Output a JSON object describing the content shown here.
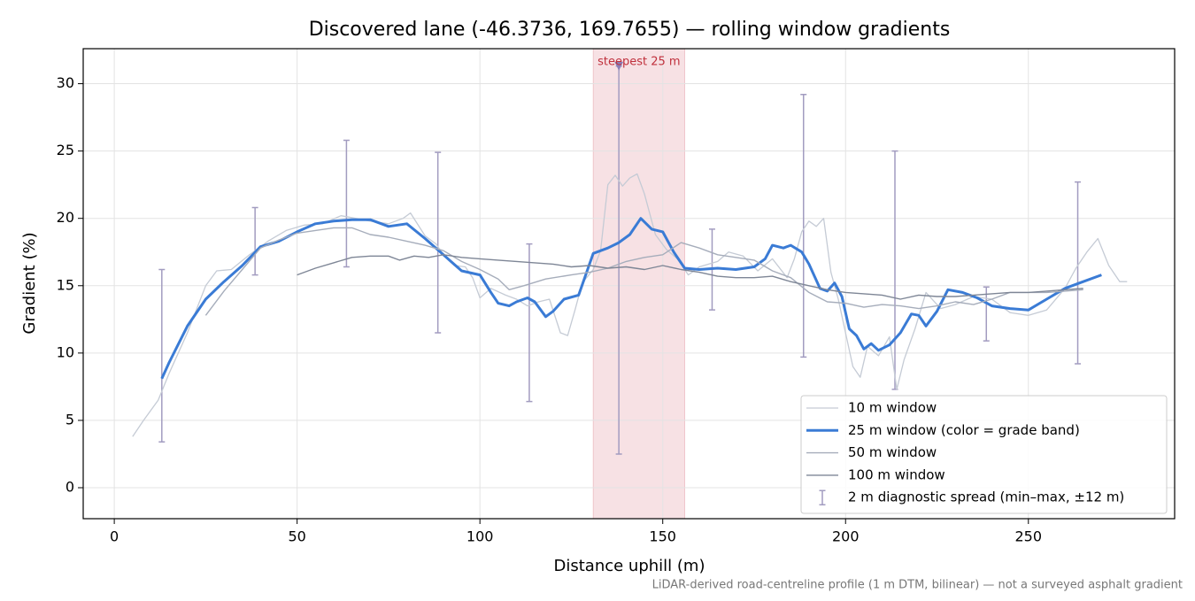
{
  "chart_data": {
    "type": "line",
    "title": "Discovered lane (-46.3736, 169.7655) — rolling window gradients",
    "x_label": "Distance uphill (m)",
    "y_label": "Gradient (%)",
    "footnote": "LiDAR-derived road-centreline profile (1 m DTM, bilinear) — not a surveyed asphalt gradient",
    "xlim": [
      -8.5,
      290
    ],
    "ylim": [
      -2.3,
      32.6
    ],
    "xticks": [
      0,
      50,
      100,
      150,
      200,
      250
    ],
    "yticks": [
      0,
      5,
      10,
      15,
      20,
      25,
      30
    ],
    "grid": true,
    "legend": "lower right",
    "series": [
      {
        "name": "10 m window",
        "color": "#c5cbd5",
        "width": 1.3,
        "x": [
          5,
          8,
          12,
          15,
          20,
          25,
          28,
          32,
          37,
          42,
          47,
          52,
          57,
          62,
          66,
          70,
          75,
          79,
          81,
          85,
          88,
          90,
          93,
          96,
          98,
          100,
          103,
          107,
          110,
          113,
          116,
          119,
          122,
          124,
          126,
          128,
          131,
          133,
          135,
          137,
          139,
          141,
          143,
          145,
          148,
          151,
          154,
          157,
          160,
          165,
          168,
          172,
          176,
          180,
          184,
          186,
          188,
          190,
          192,
          194,
          196,
          198,
          200,
          202,
          204,
          206,
          209,
          212,
          214,
          216,
          219,
          222,
          226,
          230,
          235,
          240,
          245,
          250,
          255,
          260,
          263,
          266,
          269,
          272,
          275,
          277
        ],
        "values": [
          3.8,
          5.0,
          6.5,
          8.5,
          11.5,
          15.0,
          16.1,
          16.2,
          17.3,
          18.3,
          19.1,
          19.5,
          19.6,
          20.2,
          20.0,
          19.8,
          19.6,
          20.0,
          20.4,
          18.7,
          18.1,
          17.3,
          16.5,
          16.4,
          15.6,
          14.1,
          14.8,
          14.3,
          14.0,
          13.5,
          13.8,
          14.0,
          11.5,
          11.3,
          13.2,
          15.2,
          16.2,
          17.6,
          22.5,
          23.2,
          22.4,
          23.0,
          23.3,
          21.8,
          18.8,
          17.7,
          17.0,
          15.8,
          16.4,
          16.8,
          17.5,
          17.2,
          16.1,
          17.0,
          15.6,
          17.0,
          19.0,
          19.8,
          19.4,
          20.0,
          16.0,
          14.0,
          11.5,
          9.0,
          8.2,
          10.5,
          9.8,
          11.2,
          7.3,
          9.5,
          11.8,
          14.5,
          13.3,
          13.6,
          14.2,
          14.0,
          13.0,
          12.8,
          13.2,
          14.8,
          16.3,
          17.5,
          18.5,
          16.5,
          15.3,
          15.3
        ]
      },
      {
        "name": "25 m window (color = grade band)",
        "color": "#3a7bd5",
        "width": 3,
        "x": [
          13,
          15,
          20,
          25,
          30,
          35,
          40,
          45,
          50,
          55,
          60,
          65,
          70,
          75,
          80,
          85,
          90,
          95,
          100,
          103,
          105,
          108,
          110,
          113,
          115,
          118,
          120,
          123,
          127,
          131,
          135,
          138,
          141,
          144,
          147,
          150,
          153,
          156,
          160,
          165,
          170,
          175,
          178,
          180,
          183,
          185,
          188,
          190,
          193,
          195,
          197,
          199,
          201,
          203,
          205,
          207,
          209,
          212,
          215,
          218,
          220,
          222,
          225,
          228,
          232,
          236,
          240,
          245,
          250,
          255,
          260,
          265,
          270
        ],
        "values": [
          8.1,
          9.3,
          12.0,
          14.0,
          15.3,
          16.5,
          17.9,
          18.3,
          19.0,
          19.6,
          19.8,
          19.9,
          19.9,
          19.4,
          19.6,
          18.5,
          17.3,
          16.1,
          15.8,
          14.5,
          13.7,
          13.5,
          13.8,
          14.1,
          13.8,
          12.7,
          13.1,
          14.0,
          14.3,
          17.4,
          17.8,
          18.2,
          18.8,
          20.0,
          19.2,
          19.0,
          17.5,
          16.3,
          16.2,
          16.3,
          16.2,
          16.4,
          17.0,
          18.0,
          17.8,
          18.0,
          17.5,
          16.6,
          14.8,
          14.6,
          15.2,
          14.2,
          11.8,
          11.3,
          10.3,
          10.7,
          10.2,
          10.6,
          11.5,
          12.9,
          12.8,
          12.0,
          13.1,
          14.7,
          14.5,
          14.1,
          13.5,
          13.3,
          13.2,
          14.0,
          14.8,
          15.3,
          15.8
        ]
      },
      {
        "name": "50 m window",
        "color": "#a6adbb",
        "width": 1.4,
        "x": [
          25,
          30,
          35,
          40,
          45,
          50,
          55,
          60,
          65,
          70,
          75,
          80,
          85,
          90,
          95,
          100,
          105,
          108,
          112,
          118,
          125,
          130,
          135,
          140,
          145,
          150,
          155,
          160,
          165,
          170,
          175,
          180,
          185,
          190,
          195,
          200,
          205,
          210,
          215,
          220,
          225,
          230,
          235,
          240,
          245,
          250,
          255,
          260,
          265
        ],
        "values": [
          12.8,
          14.6,
          16.2,
          17.8,
          18.4,
          18.9,
          19.1,
          19.3,
          19.3,
          18.8,
          18.6,
          18.3,
          18.0,
          17.6,
          16.8,
          16.2,
          15.5,
          14.7,
          15.0,
          15.5,
          15.8,
          16.0,
          16.3,
          16.8,
          17.1,
          17.3,
          18.2,
          17.8,
          17.3,
          17.1,
          16.9,
          16.1,
          15.6,
          14.5,
          13.8,
          13.7,
          13.4,
          13.6,
          13.5,
          13.3,
          13.5,
          13.8,
          13.6,
          14.0,
          14.5,
          14.5,
          14.5,
          14.6,
          14.7
        ]
      },
      {
        "name": "100 m window",
        "color": "#7e8696",
        "width": 1.4,
        "x": [
          50,
          55,
          60,
          65,
          70,
          75,
          78,
          82,
          86,
          90,
          95,
          100,
          105,
          110,
          115,
          120,
          125,
          130,
          135,
          140,
          145,
          150,
          155,
          160,
          165,
          170,
          175,
          180,
          185,
          190,
          195,
          200,
          205,
          210,
          215,
          220,
          225,
          230,
          235,
          240,
          245,
          250,
          255,
          260,
          265
        ],
        "values": [
          15.8,
          16.3,
          16.7,
          17.1,
          17.2,
          17.2,
          16.9,
          17.2,
          17.1,
          17.3,
          17.1,
          17.0,
          16.9,
          16.8,
          16.7,
          16.6,
          16.4,
          16.5,
          16.3,
          16.4,
          16.2,
          16.5,
          16.2,
          16.0,
          15.7,
          15.6,
          15.6,
          15.7,
          15.3,
          15.0,
          14.7,
          14.5,
          14.4,
          14.3,
          14.0,
          14.3,
          14.2,
          14.2,
          14.3,
          14.4,
          14.5,
          14.5,
          14.6,
          14.7,
          14.8
        ]
      }
    ],
    "spread": {
      "name": "2 m diagnostic spread (min–max, ±12 m)",
      "color": "#a29cc0",
      "x": [
        13,
        38.5,
        63.5,
        88.5,
        113.5,
        138,
        163.5,
        188.5,
        213.5,
        238.5,
        263.5
      ],
      "lower": [
        3.4,
        15.8,
        16.4,
        11.5,
        6.4,
        2.5,
        13.2,
        9.7,
        7.3,
        10.9,
        9.2
      ],
      "upper": [
        16.2,
        20.8,
        25.8,
        24.9,
        18.1,
        31.3,
        19.2,
        29.2,
        25.0,
        14.9,
        22.7
      ]
    },
    "highlight": {
      "label": "steepest 25 m",
      "xrange": [
        131,
        156
      ],
      "color": "#e8aab2",
      "peak": [
        138,
        31.3
      ]
    }
  }
}
